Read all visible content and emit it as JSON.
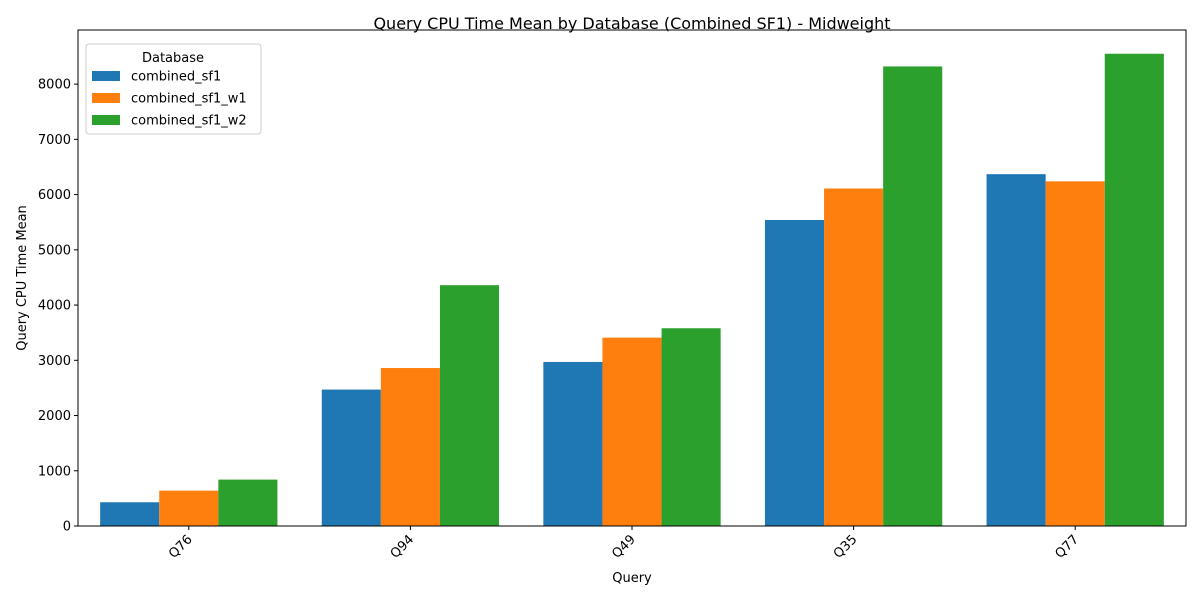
{
  "chart_data": {
    "type": "bar",
    "title": "Query CPU Time Mean by Database (Combined SF1) - Midweight",
    "xlabel": "Query",
    "ylabel": "Query CPU Time Mean",
    "categories": [
      "Q76",
      "Q94",
      "Q49",
      "Q35",
      "Q77"
    ],
    "series": [
      {
        "name": "combined_sf1",
        "color": "#1f77b4",
        "values": [
          430,
          2470,
          2970,
          5540,
          6370
        ]
      },
      {
        "name": "combined_sf1_w1",
        "color": "#ff7f0e",
        "values": [
          640,
          2860,
          3410,
          6110,
          6240
        ]
      },
      {
        "name": "combined_sf1_w2",
        "color": "#2ca02c",
        "values": [
          840,
          4360,
          3580,
          8320,
          8550
        ]
      }
    ],
    "yticks": [
      0,
      1000,
      2000,
      3000,
      4000,
      5000,
      6000,
      7000,
      8000
    ],
    "ylim": [
      0,
      8980
    ],
    "grid": false,
    "legend": {
      "title": "Database",
      "placement": "top-left"
    }
  }
}
